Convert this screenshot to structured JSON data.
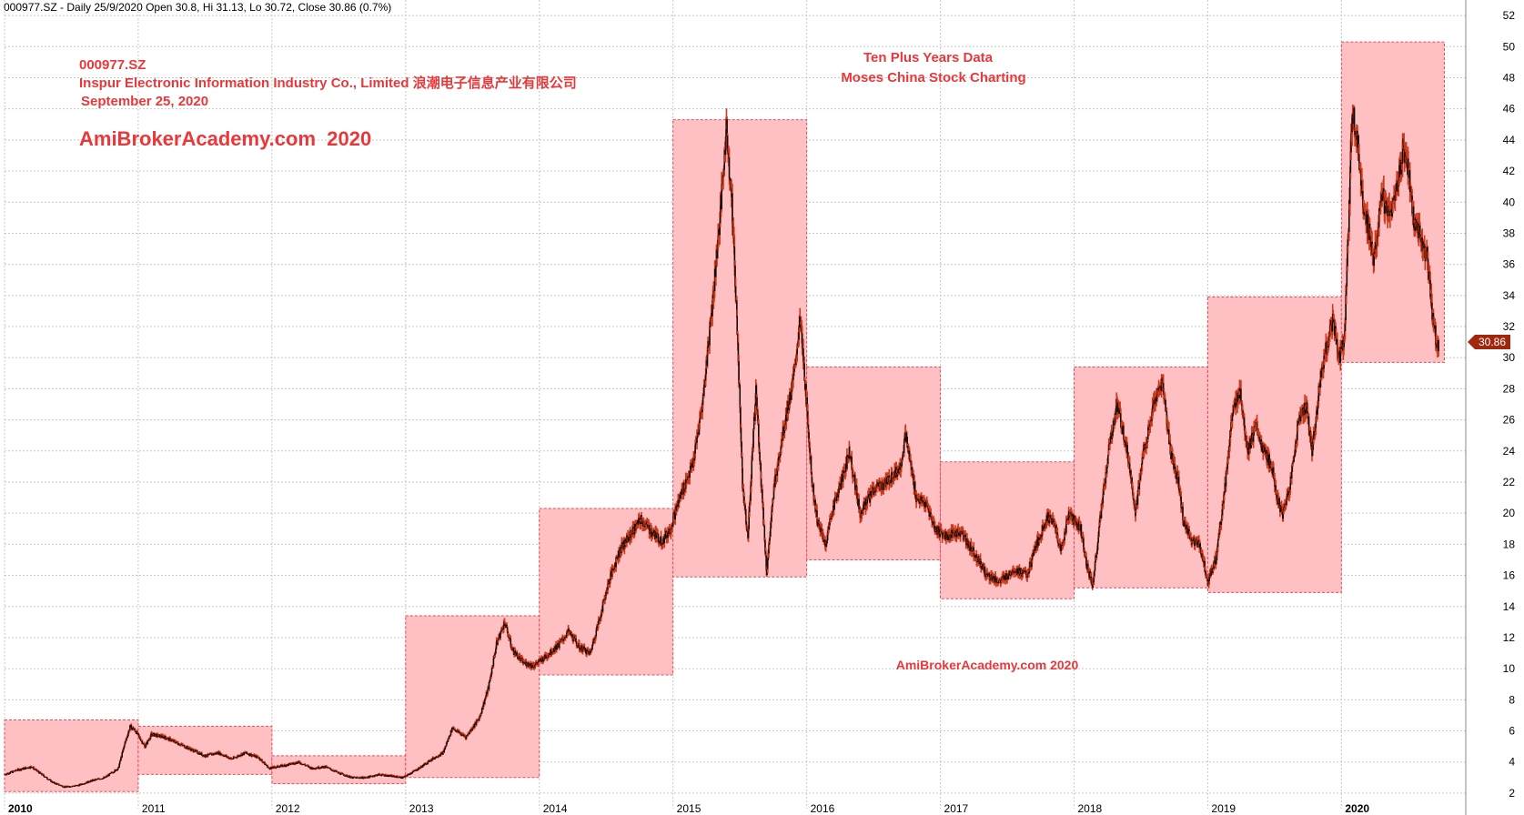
{
  "header": {
    "info": "000977.SZ - Daily 25/9/2020 Open 30.8, Hi 31.13, Lo 30.72, Close 30.86 (0.7%)"
  },
  "titles": {
    "ticker": "000977.SZ",
    "company": "Inspur Electronic Information Industry Co., Limited 浪潮电子信息产业有限公司",
    "date": "September 25, 2020",
    "brand": "AmiBrokerAcademy.com  2020",
    "note_line1": "Ten Plus Years Data",
    "note_line2": "Moses China Stock Charting",
    "watermark": "AmiBrokerAcademy.com 2020"
  },
  "price_label": "30.86",
  "colors": {
    "title_red": "#e8383b",
    "box_fill": "#ffc0c4",
    "box_border": "#e84b52",
    "candle": "#000000",
    "candle_edge": "#c83a1e",
    "grid": "#c8c8c8",
    "price_tag": "#a0260e"
  },
  "chart_data": {
    "type": "candlestick",
    "ylim": [
      1,
      53
    ],
    "xlim": [
      2010.0,
      2020.93
    ],
    "y_ticks": [
      2,
      4,
      6,
      8,
      10,
      12,
      14,
      16,
      18,
      20,
      22,
      24,
      26,
      28,
      30,
      32,
      34,
      36,
      38,
      40,
      42,
      44,
      46,
      48,
      50,
      52
    ],
    "x_ticks": [
      {
        "label": "2010",
        "x": 2010.0,
        "bold": true
      },
      {
        "label": "2011",
        "x": 2011.0
      },
      {
        "label": "2012",
        "x": 2012.0
      },
      {
        "label": "2013",
        "x": 2013.0
      },
      {
        "label": "2014",
        "x": 2014.0
      },
      {
        "label": "2015",
        "x": 2015.0
      },
      {
        "label": "2016",
        "x": 2016.0
      },
      {
        "label": "2017",
        "x": 2017.0
      },
      {
        "label": "2018",
        "x": 2018.0
      },
      {
        "label": "2019",
        "x": 2019.0
      },
      {
        "label": "2020",
        "x": 2020.0,
        "bold": true
      }
    ],
    "yearly_ranges": [
      {
        "year": 2010,
        "low": 2.1,
        "high": 6.7
      },
      {
        "year": 2011,
        "low": 3.2,
        "high": 6.3
      },
      {
        "year": 2012,
        "low": 2.6,
        "high": 4.4
      },
      {
        "year": 2013,
        "low": 3.0,
        "high": 13.4
      },
      {
        "year": 2014,
        "low": 9.6,
        "high": 20.3
      },
      {
        "year": 2015,
        "low": 15.9,
        "high": 45.3
      },
      {
        "year": 2016,
        "low": 17.0,
        "high": 29.4
      },
      {
        "year": 2017,
        "low": 14.5,
        "high": 23.3
      },
      {
        "year": 2018,
        "low": 15.2,
        "high": 29.4
      },
      {
        "year": 2019,
        "low": 14.9,
        "high": 33.9
      },
      {
        "year": 2020,
        "low": 29.7,
        "high": 50.3
      }
    ],
    "close_path": [
      [
        2010.0,
        3.2
      ],
      [
        2010.1,
        3.5
      ],
      [
        2010.2,
        3.7
      ],
      [
        2010.28,
        3.2
      ],
      [
        2010.36,
        2.7
      ],
      [
        2010.45,
        2.4
      ],
      [
        2010.55,
        2.5
      ],
      [
        2010.65,
        2.8
      ],
      [
        2010.75,
        3.0
      ],
      [
        2010.85,
        3.6
      ],
      [
        2010.9,
        5.2
      ],
      [
        2010.94,
        6.3
      ],
      [
        2010.98,
        6.0
      ],
      [
        2011.05,
        5.0
      ],
      [
        2011.1,
        5.8
      ],
      [
        2011.2,
        5.6
      ],
      [
        2011.3,
        5.2
      ],
      [
        2011.4,
        4.8
      ],
      [
        2011.5,
        4.4
      ],
      [
        2011.6,
        4.6
      ],
      [
        2011.7,
        4.2
      ],
      [
        2011.8,
        4.6
      ],
      [
        2011.9,
        4.3
      ],
      [
        2011.98,
        3.6
      ],
      [
        2012.1,
        3.8
      ],
      [
        2012.2,
        4.0
      ],
      [
        2012.3,
        3.6
      ],
      [
        2012.4,
        3.7
      ],
      [
        2012.5,
        3.3
      ],
      [
        2012.6,
        3.0
      ],
      [
        2012.7,
        3.0
      ],
      [
        2012.8,
        3.2
      ],
      [
        2012.9,
        3.1
      ],
      [
        2012.98,
        3.0
      ],
      [
        2013.1,
        3.6
      ],
      [
        2013.2,
        4.2
      ],
      [
        2013.28,
        4.6
      ],
      [
        2013.35,
        6.2
      ],
      [
        2013.45,
        5.6
      ],
      [
        2013.55,
        6.8
      ],
      [
        2013.62,
        8.8
      ],
      [
        2013.68,
        11.6
      ],
      [
        2013.74,
        13.0
      ],
      [
        2013.8,
        11.2
      ],
      [
        2013.88,
        10.4
      ],
      [
        2013.96,
        10.2
      ],
      [
        2014.05,
        10.8
      ],
      [
        2014.15,
        11.6
      ],
      [
        2014.22,
        12.4
      ],
      [
        2014.3,
        11.4
      ],
      [
        2014.38,
        11.0
      ],
      [
        2014.45,
        13.2
      ],
      [
        2014.52,
        15.6
      ],
      [
        2014.6,
        17.6
      ],
      [
        2014.68,
        18.6
      ],
      [
        2014.76,
        19.6
      ],
      [
        2014.84,
        18.8
      ],
      [
        2014.92,
        18.2
      ],
      [
        2014.98,
        19.0
      ],
      [
        2015.05,
        21.0
      ],
      [
        2015.15,
        23.2
      ],
      [
        2015.22,
        27.0
      ],
      [
        2015.3,
        34.0
      ],
      [
        2015.36,
        40.0
      ],
      [
        2015.4,
        44.8
      ],
      [
        2015.44,
        40.0
      ],
      [
        2015.48,
        32.0
      ],
      [
        2015.52,
        22.0
      ],
      [
        2015.56,
        18.5
      ],
      [
        2015.62,
        28.0
      ],
      [
        2015.66,
        22.0
      ],
      [
        2015.7,
        16.2
      ],
      [
        2015.76,
        22.0
      ],
      [
        2015.84,
        26.0
      ],
      [
        2015.9,
        28.5
      ],
      [
        2015.95,
        32.5
      ],
      [
        2016.0,
        27.0
      ],
      [
        2016.04,
        22.0
      ],
      [
        2016.08,
        19.5
      ],
      [
        2016.14,
        18.0
      ],
      [
        2016.2,
        20.5
      ],
      [
        2016.26,
        22.0
      ],
      [
        2016.32,
        24.0
      ],
      [
        2016.4,
        20.0
      ],
      [
        2016.5,
        21.5
      ],
      [
        2016.6,
        22.0
      ],
      [
        2016.7,
        23.0
      ],
      [
        2016.74,
        25.0
      ],
      [
        2016.82,
        21.0
      ],
      [
        2016.9,
        20.5
      ],
      [
        2016.96,
        19.0
      ],
      [
        2017.05,
        18.5
      ],
      [
        2017.15,
        18.8
      ],
      [
        2017.25,
        17.5
      ],
      [
        2017.35,
        16.0
      ],
      [
        2017.45,
        15.6
      ],
      [
        2017.55,
        16.4
      ],
      [
        2017.65,
        16.0
      ],
      [
        2017.72,
        18.0
      ],
      [
        2017.8,
        19.8
      ],
      [
        2017.86,
        19.2
      ],
      [
        2017.9,
        17.5
      ],
      [
        2017.96,
        20.0
      ],
      [
        2018.05,
        19.0
      ],
      [
        2018.1,
        16.5
      ],
      [
        2018.14,
        15.4
      ],
      [
        2018.2,
        20.0
      ],
      [
        2018.26,
        24.0
      ],
      [
        2018.32,
        27.0
      ],
      [
        2018.4,
        24.0
      ],
      [
        2018.46,
        20.0
      ],
      [
        2018.52,
        24.0
      ],
      [
        2018.6,
        27.0
      ],
      [
        2018.66,
        28.5
      ],
      [
        2018.72,
        24.0
      ],
      [
        2018.78,
        22.0
      ],
      [
        2018.82,
        19.5
      ],
      [
        2018.88,
        18.2
      ],
      [
        2018.94,
        18.0
      ],
      [
        2019.0,
        15.6
      ],
      [
        2019.06,
        17.0
      ],
      [
        2019.12,
        21.0
      ],
      [
        2019.18,
        26.0
      ],
      [
        2019.24,
        28.0
      ],
      [
        2019.3,
        24.0
      ],
      [
        2019.36,
        25.5
      ],
      [
        2019.42,
        24.0
      ],
      [
        2019.48,
        23.0
      ],
      [
        2019.52,
        21.0
      ],
      [
        2019.56,
        19.8
      ],
      [
        2019.62,
        22.0
      ],
      [
        2019.68,
        26.0
      ],
      [
        2019.74,
        27.0
      ],
      [
        2019.78,
        24.0
      ],
      [
        2019.84,
        28.5
      ],
      [
        2019.88,
        30.5
      ],
      [
        2019.94,
        32.5
      ],
      [
        2019.98,
        30.0
      ],
      [
        2020.02,
        31.0
      ],
      [
        2020.06,
        40.0
      ],
      [
        2020.08,
        46.0
      ],
      [
        2020.12,
        44.0
      ],
      [
        2020.16,
        40.0
      ],
      [
        2020.2,
        38.5
      ],
      [
        2020.24,
        36.0
      ],
      [
        2020.3,
        40.5
      ],
      [
        2020.36,
        39.0
      ],
      [
        2020.42,
        41.0
      ],
      [
        2020.46,
        43.5
      ],
      [
        2020.5,
        42.0
      ],
      [
        2020.54,
        39.0
      ],
      [
        2020.58,
        38.0
      ],
      [
        2020.64,
        36.5
      ],
      [
        2020.68,
        33.0
      ],
      [
        2020.71,
        30.9
      ],
      [
        2020.73,
        30.86
      ]
    ]
  }
}
